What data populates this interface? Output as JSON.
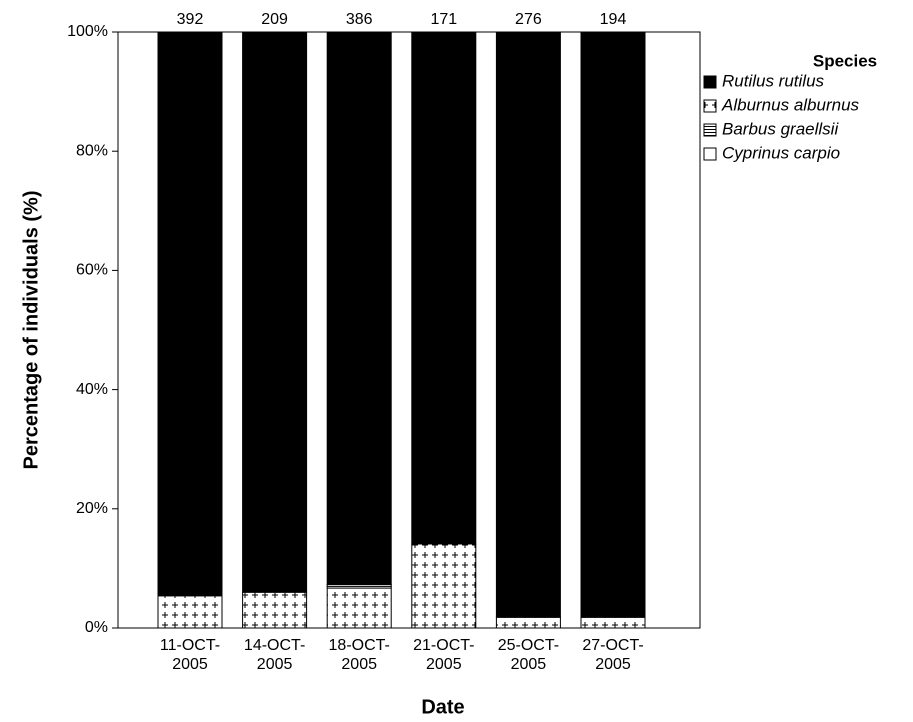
{
  "chart_data": {
    "type": "stacked_bar_percent",
    "ylabel": "Percentage of individuals (%)",
    "xlabel": "Date",
    "categories": [
      "11-OCT-2005",
      "14-OCT-2005",
      "18-OCT-2005",
      "21-OCT-2005",
      "25-OCT-2005",
      "27-OCT-2005"
    ],
    "totals": [
      392,
      209,
      386,
      171,
      276,
      194
    ],
    "legend_title": "Species",
    "series": [
      {
        "name": "Rutilus rutilus",
        "color": "#000000",
        "pattern": "solid",
        "values": [
          94.6,
          94.0,
          92.7,
          85.9,
          98.2,
          98.2
        ]
      },
      {
        "name": "Alburnus alburnus",
        "color": "#000000",
        "pattern": "cross",
        "values": [
          5.4,
          6.0,
          6.7,
          14.1,
          1.8,
          1.8
        ]
      },
      {
        "name": "Barbus graellsii",
        "color": "#000000",
        "pattern": "hlines",
        "values": [
          0,
          0,
          0.3,
          0,
          0,
          0
        ]
      },
      {
        "name": "Cyprinus carpio",
        "color": "#ffffff",
        "pattern": "solid",
        "values": [
          0,
          0,
          0.3,
          0,
          0,
          0
        ]
      }
    ],
    "ylim": [
      0,
      100
    ],
    "yticks": [
      {
        "value": 0,
        "label": "0%"
      },
      {
        "value": 20,
        "label": "20%"
      },
      {
        "value": 40,
        "label": "40%"
      },
      {
        "value": 60,
        "label": "60%"
      },
      {
        "value": 80,
        "label": "80%"
      },
      {
        "value": 100,
        "label": "100%"
      }
    ],
    "legend_position": "right"
  }
}
